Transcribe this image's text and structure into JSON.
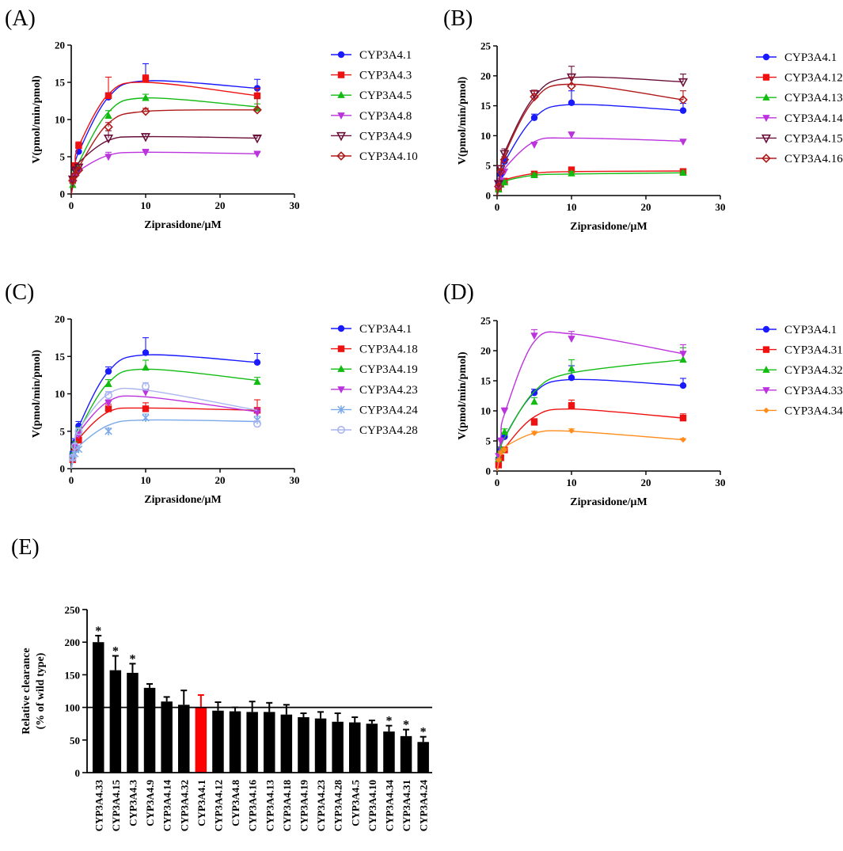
{
  "chart_data": [
    {
      "panel": "(A)",
      "type": "scatter",
      "fit": "curve",
      "xlabel": "Ziprasidone/μM",
      "ylabel": "V(pmol/min/pmol)",
      "xlim": [
        0,
        30
      ],
      "xticks": [
        0,
        10,
        20,
        30
      ],
      "ylim": [
        0,
        20
      ],
      "yticks": [
        0,
        5,
        10,
        15,
        20
      ],
      "x": [
        0.2,
        0.5,
        1,
        5,
        10,
        25
      ],
      "series": [
        {
          "name": "CYP3A4.1",
          "marker": "circle",
          "color": "#1a1aff",
          "values": [
            2.0,
            3.5,
            5.7,
            13.0,
            15.5,
            14.2
          ],
          "errors": [
            0.3,
            0.5,
            0.6,
            0.6,
            2.0,
            1.2
          ],
          "fit": [
            0,
            3.2,
            5.6,
            13.0,
            15.2,
            14.2
          ]
        },
        {
          "name": "CYP3A4.3",
          "marker": "square",
          "color": "#ee1111",
          "values": [
            1.8,
            3.8,
            6.5,
            13.2,
            15.5,
            13.2
          ],
          "errors": [
            0.3,
            0.4,
            0.5,
            2.5,
            0.5,
            1.0
          ],
          "fit": [
            0,
            3.8,
            6.4,
            13.4,
            15.0,
            13.2
          ]
        },
        {
          "name": "CYP3A4.5",
          "marker": "triangle",
          "color": "#11bb11",
          "values": [
            1.2,
            2.8,
            3.6,
            10.5,
            12.9,
            11.5
          ],
          "errors": [
            0.2,
            0.3,
            0.4,
            0.7,
            0.5,
            0.6
          ],
          "fit": [
            0,
            2.6,
            4.2,
            11.0,
            12.9,
            11.7
          ]
        },
        {
          "name": "CYP3A4.8",
          "marker": "tri-down",
          "color": "#bb33dd",
          "values": [
            1.5,
            2.4,
            3.0,
            5.0,
            5.6,
            5.4
          ],
          "errors": [
            0.2,
            0.3,
            0.3,
            0.6,
            0.4,
            0.2
          ],
          "fit": [
            0,
            2.2,
            3.1,
            5.2,
            5.6,
            5.4
          ]
        },
        {
          "name": "CYP3A4.9",
          "marker": "tri-open",
          "color": "#6a0f3a",
          "values": [
            2.0,
            3.2,
            3.6,
            7.5,
            7.7,
            7.5
          ],
          "errors": [
            0.3,
            0.3,
            0.3,
            1.0,
            0.4,
            0.3
          ],
          "fit": [
            0,
            2.8,
            4.2,
            7.2,
            7.7,
            7.5
          ]
        },
        {
          "name": "CYP3A4.10",
          "marker": "diamond",
          "color": "#b01a1a",
          "values": [
            1.8,
            2.5,
            3.2,
            9.0,
            11.1,
            11.3
          ],
          "errors": [
            0.3,
            0.3,
            0.3,
            0.6,
            0.4,
            1.5
          ],
          "fit": [
            0,
            2.3,
            3.6,
            9.5,
            11.1,
            11.3
          ]
        }
      ]
    },
    {
      "panel": "(B)",
      "type": "scatter",
      "fit": "curve",
      "xlabel": "Ziprasidone/μM",
      "ylabel": "V(pmol/min/pmol)",
      "xlim": [
        0,
        30
      ],
      "xticks": [
        0,
        10,
        20,
        30
      ],
      "ylim": [
        0,
        25
      ],
      "yticks": [
        0,
        5,
        10,
        15,
        20,
        25
      ],
      "x": [
        0.2,
        0.5,
        1,
        5,
        10,
        25
      ],
      "series": [
        {
          "name": "CYP3A4.1",
          "marker": "circle",
          "color": "#1a1aff",
          "values": [
            2.0,
            3.5,
            5.7,
            13.0,
            15.5,
            14.2
          ],
          "errors": [
            0.3,
            0.5,
            0.6,
            0.6,
            2.0,
            1.2
          ],
          "fit": [
            0,
            3.2,
            5.6,
            13.0,
            15.2,
            14.2
          ]
        },
        {
          "name": "CYP3A4.12",
          "marker": "square",
          "color": "#ee1111",
          "values": [
            1.2,
            2.0,
            2.4,
            3.6,
            4.3,
            4.0
          ],
          "errors": [
            0.2,
            0.3,
            0.3,
            0.3,
            0.3,
            0.5
          ],
          "fit": [
            0,
            1.8,
            2.6,
            3.7,
            4.0,
            4.1
          ]
        },
        {
          "name": "CYP3A4.13",
          "marker": "triangle",
          "color": "#11bb11",
          "values": [
            1.0,
            1.8,
            2.2,
            3.4,
            3.7,
            3.8
          ],
          "errors": [
            0.2,
            0.2,
            0.3,
            0.3,
            0.3,
            0.3
          ],
          "fit": [
            0,
            1.6,
            2.4,
            3.4,
            3.6,
            3.8
          ]
        },
        {
          "name": "CYP3A4.14",
          "marker": "tri-down",
          "color": "#bb33dd",
          "values": [
            1.4,
            2.5,
            4.0,
            8.5,
            10.2,
            9.0
          ],
          "errors": [
            0.3,
            0.3,
            0.4,
            0.4,
            0.4,
            0.3
          ],
          "fit": [
            0,
            2.5,
            4.5,
            9.0,
            9.6,
            9.1
          ]
        },
        {
          "name": "CYP3A4.15",
          "marker": "tri-open",
          "color": "#6a0f3a",
          "values": [
            2.0,
            4.5,
            7.0,
            17.0,
            19.8,
            19.0
          ],
          "errors": [
            0.3,
            0.5,
            0.8,
            0.6,
            1.8,
            1.3
          ],
          "fit": [
            0,
            4.2,
            7.2,
            16.5,
            19.7,
            19.0
          ]
        },
        {
          "name": "CYP3A4.16",
          "marker": "diamond",
          "color": "#b01a1a",
          "values": [
            1.5,
            4.0,
            6.0,
            16.5,
            18.3,
            16.0
          ],
          "errors": [
            0.3,
            0.4,
            0.5,
            1.0,
            1.5,
            1.5
          ],
          "fit": [
            0,
            4.0,
            6.8,
            16.0,
            18.6,
            16.0
          ]
        }
      ]
    },
    {
      "panel": "(C)",
      "type": "scatter",
      "fit": "curve",
      "xlabel": "Ziprasidone/μM",
      "ylabel": "V(pmol/min/pmol)",
      "xlim": [
        0,
        30
      ],
      "xticks": [
        0,
        10,
        20,
        30
      ],
      "ylim": [
        0,
        20
      ],
      "yticks": [
        0,
        5,
        10,
        15,
        20
      ],
      "x": [
        0.2,
        0.5,
        1,
        5,
        10,
        25
      ],
      "series": [
        {
          "name": "CYP3A4.1",
          "marker": "circle",
          "color": "#1a1aff",
          "values": [
            2.0,
            3.5,
            5.7,
            13.0,
            15.5,
            14.2
          ],
          "errors": [
            0.3,
            0.5,
            0.6,
            0.6,
            2.0,
            1.2
          ],
          "fit": [
            0,
            3.2,
            5.6,
            13.0,
            15.2,
            14.2
          ]
        },
        {
          "name": "CYP3A4.18",
          "marker": "square",
          "color": "#ee1111",
          "values": [
            1.2,
            2.8,
            3.8,
            8.0,
            8.0,
            7.8
          ],
          "errors": [
            0.3,
            0.3,
            0.3,
            0.6,
            0.8,
            1.4
          ],
          "fit": [
            0,
            2.6,
            4.0,
            7.6,
            8.1,
            7.8
          ]
        },
        {
          "name": "CYP3A4.19",
          "marker": "triangle",
          "color": "#11bb11",
          "values": [
            1.8,
            3.2,
            5.0,
            11.3,
            13.5,
            11.6
          ],
          "errors": [
            0.3,
            0.4,
            0.5,
            0.6,
            1.0,
            0.6
          ],
          "fit": [
            0,
            3.0,
            5.0,
            11.5,
            13.3,
            11.8
          ]
        },
        {
          "name": "CYP3A4.23",
          "marker": "tri-down",
          "color": "#bb33dd",
          "values": [
            1.5,
            3.0,
            4.5,
            8.8,
            10.2,
            7.5
          ],
          "errors": [
            0.3,
            0.3,
            0.4,
            0.4,
            0.4,
            0.6
          ],
          "fit": [
            0,
            3.0,
            4.8,
            9.0,
            9.6,
            7.6
          ]
        },
        {
          "name": "CYP3A4.24",
          "marker": "star",
          "color": "#7aa8e8",
          "values": [
            1.4,
            2.0,
            2.6,
            5.0,
            6.8,
            6.5
          ],
          "errors": [
            0.2,
            0.2,
            0.3,
            0.4,
            0.5,
            0.5
          ],
          "fit": [
            0,
            2.0,
            3.0,
            5.8,
            6.5,
            6.3
          ]
        },
        {
          "name": "CYP3A4.28",
          "marker": "circle-open",
          "color": "#aab4f0",
          "values": [
            1.5,
            3.0,
            5.0,
            9.8,
            11.0,
            6.0
          ],
          "errors": [
            0.3,
            0.3,
            0.4,
            0.5,
            0.5,
            0.4
          ],
          "fit": [
            0,
            3.2,
            5.2,
            10.0,
            10.5,
            7.8
          ]
        }
      ]
    },
    {
      "panel": "(D)",
      "type": "scatter",
      "fit": "curve",
      "xlabel": "Ziprasidone/μM",
      "ylabel": "V(pmol/min/pmol)",
      "xlim": [
        0,
        30
      ],
      "xticks": [
        0,
        10,
        20,
        30
      ],
      "ylim": [
        0,
        25
      ],
      "yticks": [
        0,
        5,
        10,
        15,
        20,
        25
      ],
      "x": [
        0.2,
        0.5,
        1,
        5,
        10,
        25
      ],
      "series": [
        {
          "name": "CYP3A4.1",
          "marker": "circle",
          "color": "#1a1aff",
          "values": [
            2.0,
            3.5,
            5.7,
            13.0,
            15.5,
            14.2
          ],
          "errors": [
            0.3,
            0.5,
            0.6,
            0.6,
            2.0,
            1.2
          ],
          "fit": [
            0,
            3.2,
            5.6,
            13.0,
            15.2,
            14.2
          ]
        },
        {
          "name": "CYP3A4.31",
          "marker": "square",
          "color": "#ee1111",
          "values": [
            1.0,
            2.2,
            3.5,
            8.1,
            10.9,
            8.8
          ],
          "errors": [
            0.2,
            0.3,
            0.4,
            0.6,
            0.9,
            0.7
          ],
          "fit": [
            0,
            2.2,
            3.8,
            9.0,
            10.3,
            8.8
          ]
        },
        {
          "name": "CYP3A4.32",
          "marker": "triangle",
          "color": "#11bb11",
          "values": [
            2.0,
            3.5,
            6.5,
            11.5,
            17.0,
            18.5
          ],
          "errors": [
            0.3,
            0.4,
            0.5,
            0.7,
            1.5,
            2.0
          ],
          "fit": [
            0,
            3.2,
            5.5,
            13.2,
            16.3,
            18.5
          ]
        },
        {
          "name": "CYP3A4.33",
          "marker": "tri-down",
          "color": "#bb33dd",
          "values": [
            2.5,
            5.0,
            10.0,
            22.5,
            22.0,
            19.5
          ],
          "errors": [
            0.3,
            0.5,
            0.5,
            1.0,
            1.2,
            1.5
          ],
          "fit": [
            0,
            5.5,
            9.5,
            21.5,
            22.8,
            19.5
          ]
        },
        {
          "name": "CYP3A4.34",
          "marker": "diamond-filled",
          "color": "#ff8c1a",
          "values": [
            1.8,
            3.0,
            3.5,
            6.3,
            6.7,
            5.2
          ],
          "errors": [
            0.2,
            0.3,
            0.3,
            0.3,
            0.3,
            0.2
          ],
          "fit": [
            0,
            3.0,
            4.0,
            6.3,
            6.6,
            5.2
          ]
        }
      ]
    },
    {
      "panel": "(E)",
      "type": "bar",
      "ylabel": "Relative clearance",
      "ylabel2": "(% of wild type)",
      "ylim": [
        0,
        250
      ],
      "yticks": [
        0,
        50,
        100,
        150,
        200,
        250
      ],
      "reference_line": 100,
      "highlight": "CYP3A4.1",
      "highlight_color": "#ff0000",
      "bar_color": "#000000",
      "significance_marker": "*",
      "categories": [
        "CYP3A4.33",
        "CYP3A4.15",
        "CYP3A4.3",
        "CYP3A4.9",
        "CYP3A4.14",
        "CYP3A4.32",
        "CYP3A4.1",
        "CYP3A4.12",
        "CYP3A4.8",
        "CYP3A4.16",
        "CYP3A4.13",
        "CYP3A4.18",
        "CYP3A4.19",
        "CYP3A4.23",
        "CYP3A4.28",
        "CYP3A4.5",
        "CYP3A4.10",
        "CYP3A4.34",
        "CYP3A4.31",
        "CYP3A4.24"
      ],
      "values": [
        200,
        157,
        153,
        130,
        109,
        104,
        100,
        95,
        94,
        93,
        93,
        89,
        85,
        83,
        78,
        77,
        75,
        63,
        56,
        47
      ],
      "errors": [
        10,
        22,
        14,
        6,
        7,
        22,
        19,
        13,
        6,
        16,
        14,
        15,
        6,
        10,
        13,
        8,
        5,
        9,
        10,
        8
      ],
      "significant": [
        true,
        true,
        true,
        false,
        false,
        false,
        false,
        false,
        false,
        false,
        false,
        false,
        false,
        false,
        false,
        false,
        false,
        true,
        true,
        true
      ]
    }
  ]
}
